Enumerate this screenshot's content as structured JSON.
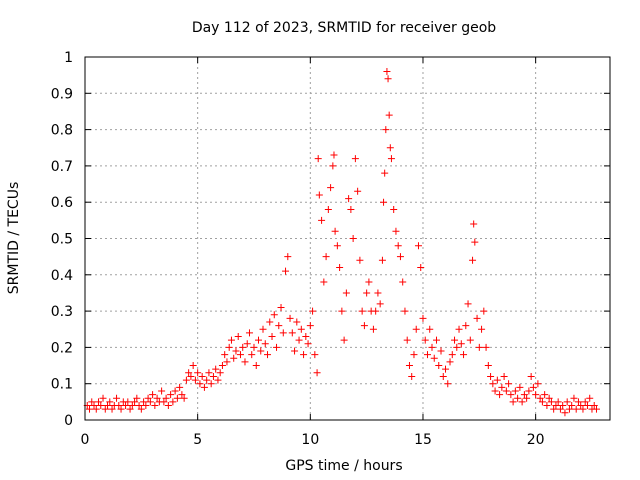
{
  "chart_data": {
    "type": "scatter",
    "title": "Day 112 of 2023, SRMTID for receiver geob",
    "xlabel": "GPS time / hours",
    "ylabel": "SRMTID / TECUs",
    "xlim": [
      0,
      23.3
    ],
    "ylim": [
      0,
      1
    ],
    "xticks": [
      0,
      5,
      10,
      15,
      20
    ],
    "xtick_labels": [
      "0",
      "5",
      "10",
      "15",
      "20"
    ],
    "yticks": [
      0,
      0.1,
      0.2,
      0.3,
      0.4,
      0.5,
      0.6,
      0.7,
      0.8,
      0.9,
      1
    ],
    "ytick_labels": [
      "0",
      "0.1",
      "0.2",
      "0.3",
      "0.4",
      "0.5",
      "0.6",
      "0.7",
      "0.8",
      "0.9",
      "1"
    ],
    "grid": true,
    "marker": "+",
    "color": "#ff0000",
    "series": [
      {
        "name": "SRMTID",
        "points": [
          [
            0.1,
            0.04
          ],
          [
            0.2,
            0.03
          ],
          [
            0.3,
            0.05
          ],
          [
            0.4,
            0.04
          ],
          [
            0.5,
            0.03
          ],
          [
            0.6,
            0.05
          ],
          [
            0.7,
            0.04
          ],
          [
            0.8,
            0.06
          ],
          [
            0.9,
            0.03
          ],
          [
            1.0,
            0.04
          ],
          [
            1.1,
            0.05
          ],
          [
            1.2,
            0.03
          ],
          [
            1.3,
            0.04
          ],
          [
            1.4,
            0.06
          ],
          [
            1.5,
            0.04
          ],
          [
            1.6,
            0.03
          ],
          [
            1.7,
            0.05
          ],
          [
            1.8,
            0.04
          ],
          [
            1.9,
            0.05
          ],
          [
            2.0,
            0.03
          ],
          [
            2.1,
            0.04
          ],
          [
            2.2,
            0.05
          ],
          [
            2.3,
            0.06
          ],
          [
            2.4,
            0.04
          ],
          [
            2.5,
            0.03
          ],
          [
            2.6,
            0.05
          ],
          [
            2.7,
            0.04
          ],
          [
            2.8,
            0.06
          ],
          [
            2.9,
            0.05
          ],
          [
            3.0,
            0.07
          ],
          [
            3.1,
            0.04
          ],
          [
            3.2,
            0.06
          ],
          [
            3.3,
            0.05
          ],
          [
            3.4,
            0.08
          ],
          [
            3.5,
            0.05
          ],
          [
            3.6,
            0.06
          ],
          [
            3.7,
            0.04
          ],
          [
            3.8,
            0.07
          ],
          [
            3.9,
            0.05
          ],
          [
            4.0,
            0.08
          ],
          [
            4.1,
            0.06
          ],
          [
            4.2,
            0.09
          ],
          [
            4.3,
            0.07
          ],
          [
            4.4,
            0.06
          ],
          [
            4.5,
            0.11
          ],
          [
            4.6,
            0.13
          ],
          [
            4.7,
            0.12
          ],
          [
            4.8,
            0.15
          ],
          [
            4.9,
            0.11
          ],
          [
            5.0,
            0.13
          ],
          [
            5.1,
            0.1
          ],
          [
            5.2,
            0.12
          ],
          [
            5.3,
            0.09
          ],
          [
            5.4,
            0.11
          ],
          [
            5.5,
            0.13
          ],
          [
            5.6,
            0.1
          ],
          [
            5.7,
            0.12
          ],
          [
            5.8,
            0.14
          ],
          [
            5.9,
            0.11
          ],
          [
            6.0,
            0.13
          ],
          [
            6.1,
            0.15
          ],
          [
            6.2,
            0.18
          ],
          [
            6.3,
            0.16
          ],
          [
            6.4,
            0.2
          ],
          [
            6.5,
            0.22
          ],
          [
            6.6,
            0.17
          ],
          [
            6.7,
            0.19
          ],
          [
            6.8,
            0.23
          ],
          [
            6.9,
            0.18
          ],
          [
            7.0,
            0.2
          ],
          [
            7.1,
            0.16
          ],
          [
            7.2,
            0.21
          ],
          [
            7.3,
            0.24
          ],
          [
            7.4,
            0.18
          ],
          [
            7.5,
            0.2
          ],
          [
            7.6,
            0.15
          ],
          [
            7.7,
            0.22
          ],
          [
            7.8,
            0.19
          ],
          [
            7.9,
            0.25
          ],
          [
            8.0,
            0.21
          ],
          [
            8.1,
            0.18
          ],
          [
            8.2,
            0.27
          ],
          [
            8.3,
            0.23
          ],
          [
            8.4,
            0.29
          ],
          [
            8.5,
            0.2
          ],
          [
            8.6,
            0.26
          ],
          [
            8.7,
            0.31
          ],
          [
            8.8,
            0.24
          ],
          [
            8.9,
            0.41
          ],
          [
            9.0,
            0.45
          ],
          [
            9.1,
            0.28
          ],
          [
            9.2,
            0.24
          ],
          [
            9.3,
            0.19
          ],
          [
            9.4,
            0.27
          ],
          [
            9.5,
            0.22
          ],
          [
            9.6,
            0.25
          ],
          [
            9.7,
            0.18
          ],
          [
            9.8,
            0.23
          ],
          [
            9.9,
            0.21
          ],
          [
            10.0,
            0.26
          ],
          [
            10.1,
            0.3
          ],
          [
            10.2,
            0.18
          ],
          [
            10.3,
            0.13
          ],
          [
            10.35,
            0.72
          ],
          [
            10.4,
            0.62
          ],
          [
            10.5,
            0.55
          ],
          [
            10.6,
            0.38
          ],
          [
            10.7,
            0.45
          ],
          [
            10.8,
            0.58
          ],
          [
            10.9,
            0.64
          ],
          [
            11.0,
            0.7
          ],
          [
            11.05,
            0.73
          ],
          [
            11.1,
            0.52
          ],
          [
            11.2,
            0.48
          ],
          [
            11.3,
            0.42
          ],
          [
            11.4,
            0.3
          ],
          [
            11.5,
            0.22
          ],
          [
            11.6,
            0.35
          ],
          [
            11.7,
            0.61
          ],
          [
            11.8,
            0.58
          ],
          [
            11.9,
            0.5
          ],
          [
            12.0,
            0.72
          ],
          [
            12.1,
            0.63
          ],
          [
            12.2,
            0.44
          ],
          [
            12.3,
            0.3
          ],
          [
            12.4,
            0.26
          ],
          [
            12.5,
            0.35
          ],
          [
            12.6,
            0.38
          ],
          [
            12.7,
            0.3
          ],
          [
            12.8,
            0.25
          ],
          [
            12.9,
            0.3
          ],
          [
            13.0,
            0.35
          ],
          [
            13.1,
            0.32
          ],
          [
            13.2,
            0.44
          ],
          [
            13.25,
            0.6
          ],
          [
            13.3,
            0.68
          ],
          [
            13.35,
            0.8
          ],
          [
            13.4,
            0.96
          ],
          [
            13.45,
            0.94
          ],
          [
            13.5,
            0.84
          ],
          [
            13.55,
            0.75
          ],
          [
            13.6,
            0.72
          ],
          [
            13.7,
            0.58
          ],
          [
            13.8,
            0.52
          ],
          [
            13.9,
            0.48
          ],
          [
            14.0,
            0.45
          ],
          [
            14.1,
            0.38
          ],
          [
            14.2,
            0.3
          ],
          [
            14.3,
            0.22
          ],
          [
            14.4,
            0.15
          ],
          [
            14.5,
            0.12
          ],
          [
            14.6,
            0.18
          ],
          [
            14.7,
            0.25
          ],
          [
            14.8,
            0.48
          ],
          [
            14.9,
            0.42
          ],
          [
            15.0,
            0.28
          ],
          [
            15.1,
            0.22
          ],
          [
            15.2,
            0.18
          ],
          [
            15.3,
            0.25
          ],
          [
            15.4,
            0.2
          ],
          [
            15.5,
            0.17
          ],
          [
            15.6,
            0.22
          ],
          [
            15.7,
            0.15
          ],
          [
            15.8,
            0.19
          ],
          [
            15.9,
            0.12
          ],
          [
            16.0,
            0.14
          ],
          [
            16.1,
            0.1
          ],
          [
            16.2,
            0.16
          ],
          [
            16.3,
            0.18
          ],
          [
            16.4,
            0.22
          ],
          [
            16.5,
            0.2
          ],
          [
            16.6,
            0.25
          ],
          [
            16.7,
            0.21
          ],
          [
            16.8,
            0.18
          ],
          [
            16.9,
            0.26
          ],
          [
            17.0,
            0.32
          ],
          [
            17.1,
            0.22
          ],
          [
            17.2,
            0.44
          ],
          [
            17.25,
            0.54
          ],
          [
            17.3,
            0.49
          ],
          [
            17.4,
            0.28
          ],
          [
            17.5,
            0.2
          ],
          [
            17.6,
            0.25
          ],
          [
            17.7,
            0.3
          ],
          [
            17.8,
            0.2
          ],
          [
            17.9,
            0.15
          ],
          [
            18.0,
            0.12
          ],
          [
            18.1,
            0.1
          ],
          [
            18.2,
            0.08
          ],
          [
            18.3,
            0.11
          ],
          [
            18.4,
            0.07
          ],
          [
            18.5,
            0.09
          ],
          [
            18.6,
            0.12
          ],
          [
            18.7,
            0.08
          ],
          [
            18.8,
            0.1
          ],
          [
            18.9,
            0.07
          ],
          [
            19.0,
            0.05
          ],
          [
            19.1,
            0.08
          ],
          [
            19.2,
            0.06
          ],
          [
            19.3,
            0.09
          ],
          [
            19.4,
            0.05
          ],
          [
            19.5,
            0.07
          ],
          [
            19.6,
            0.06
          ],
          [
            19.7,
            0.08
          ],
          [
            19.8,
            0.12
          ],
          [
            19.9,
            0.09
          ],
          [
            20.0,
            0.07
          ],
          [
            20.1,
            0.1
          ],
          [
            20.2,
            0.06
          ],
          [
            20.3,
            0.05
          ],
          [
            20.4,
            0.07
          ],
          [
            20.5,
            0.04
          ],
          [
            20.6,
            0.06
          ],
          [
            20.7,
            0.05
          ],
          [
            20.8,
            0.03
          ],
          [
            20.9,
            0.04
          ],
          [
            21.0,
            0.05
          ],
          [
            21.1,
            0.03
          ],
          [
            21.2,
            0.04
          ],
          [
            21.3,
            0.02
          ],
          [
            21.4,
            0.05
          ],
          [
            21.5,
            0.03
          ],
          [
            21.6,
            0.04
          ],
          [
            21.7,
            0.06
          ],
          [
            21.8,
            0.03
          ],
          [
            21.9,
            0.05
          ],
          [
            22.0,
            0.04
          ],
          [
            22.1,
            0.03
          ],
          [
            22.2,
            0.05
          ],
          [
            22.3,
            0.04
          ],
          [
            22.4,
            0.06
          ],
          [
            22.5,
            0.03
          ],
          [
            22.6,
            0.04
          ],
          [
            22.7,
            0.03
          ]
        ]
      }
    ]
  }
}
